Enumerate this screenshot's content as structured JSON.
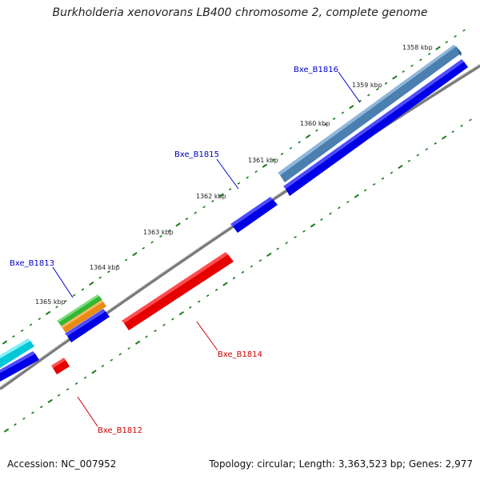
{
  "title": "Burkholderia xenovorans LB400 chromosome 2, complete genome",
  "accession_text": "Accession: NC_007952",
  "topology_text": "Topology: circular; Length: 3,363,523 bp; Genes: 2,977",
  "colors": {
    "backbone": "#7a7a7a",
    "tick": "#1a7a1a",
    "label_forward": "#0000cc",
    "label_reverse": "#cc0000",
    "leader_forward": "#0000cc",
    "leader_reverse": "#cc0000"
  },
  "kbp_labels": [
    "1358 kbp",
    "1359 kbp",
    "1360 kbp",
    "1361 kbp",
    "1362 kbp",
    "1363 kbp",
    "1364 kbp",
    "1365 kbp"
  ],
  "genes": [
    {
      "name": "Bxe_B1816",
      "strand": "forward"
    },
    {
      "name": "Bxe_B1815",
      "strand": "forward"
    },
    {
      "name": "Bxe_B1813",
      "strand": "forward"
    },
    {
      "name": "Bxe_B1814",
      "strand": "reverse"
    },
    {
      "name": "Bxe_B1812",
      "strand": "reverse"
    }
  ]
}
